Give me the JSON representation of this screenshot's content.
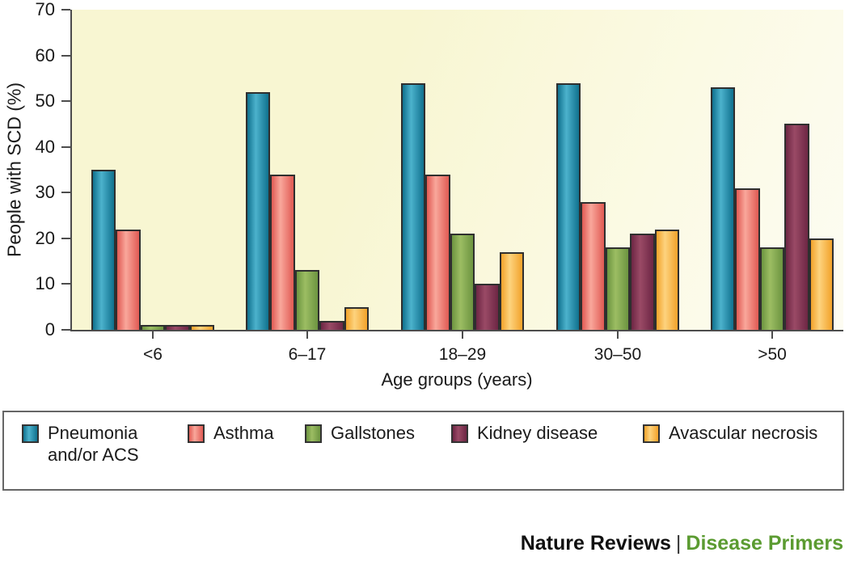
{
  "chart_data": {
    "type": "bar",
    "title": "",
    "categories": [
      "<6",
      "6–17",
      "18–29",
      "30–50",
      ">50"
    ],
    "series": [
      {
        "name": "Pneumonia and/or ACS",
        "color_dark": "#10718e",
        "color_light": "#4cb2cc",
        "values": [
          35,
          52,
          54,
          54,
          53
        ]
      },
      {
        "name": "Asthma",
        "color_dark": "#e05a53",
        "color_light": "#f9a79b",
        "values": [
          22,
          34,
          34,
          28,
          31
        ]
      },
      {
        "name": "Gallstones",
        "color_dark": "#6c9440",
        "color_light": "#9cbd63",
        "values": [
          1,
          13,
          21,
          18,
          18
        ]
      },
      {
        "name": "Kidney disease",
        "color_dark": "#6d2644",
        "color_light": "#9a4a66",
        "values": [
          1,
          2,
          10,
          21,
          45
        ]
      },
      {
        "name": "Avascular necrosis",
        "color_dark": "#f2a22a",
        "color_light": "#fdd37e",
        "values": [
          1,
          5,
          17,
          22,
          20
        ]
      }
    ],
    "xlabel": "Age groups (years)",
    "ylabel": "People with SCD (%)",
    "ylim": [
      0,
      70
    ],
    "yticks": [
      0,
      10,
      20,
      30,
      40,
      50,
      60,
      70
    ],
    "grid": false,
    "legend_position": "bottom",
    "plot_background": "#f8f6d3",
    "axis_color": "#4c4c4c"
  },
  "footer": {
    "brand_left": "Nature Reviews",
    "separator": "|",
    "brand_right": "Disease Primers",
    "brand_right_color": "#5b9b31"
  }
}
